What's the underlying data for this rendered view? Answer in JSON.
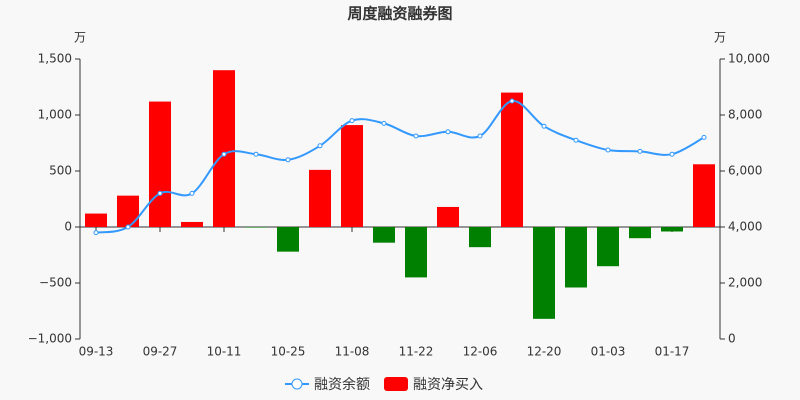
{
  "chart_data": {
    "type": "bar-line",
    "title": "周度融资融券图",
    "y_unit": "万",
    "y2_unit": "万",
    "categories": [
      "09-13",
      null,
      "09-27",
      null,
      "10-11",
      null,
      "10-25",
      null,
      "11-08",
      null,
      "11-22",
      null,
      "12-06",
      null,
      "12-20",
      null,
      "01-03",
      null,
      "01-17",
      null
    ],
    "series": [
      {
        "name": "融资余额",
        "type": "line",
        "axis": "y2",
        "color": "#3399ff",
        "values": [
          3800,
          4000,
          5200,
          5200,
          6600,
          6600,
          6400,
          6900,
          7800,
          7700,
          7250,
          7400,
          7250,
          8500,
          7600,
          7100,
          6750,
          6700,
          6600,
          7200
        ]
      },
      {
        "name": "融资净买入",
        "type": "bar",
        "color": "#ff0000",
        "negative_color": "#008000",
        "values": [
          120,
          280,
          1120,
          45,
          1400,
          -5,
          -220,
          510,
          910,
          -140,
          -450,
          179,
          -180,
          1200,
          -820,
          -540,
          -350,
          -100,
          -40,
          560
        ]
      }
    ],
    "ylim": [
      -1000,
      1500
    ],
    "yticks": [
      {
        "value": -1000,
        "label": "−1,000"
      },
      {
        "value": -500,
        "label": "−500"
      },
      0,
      500,
      {
        "value": 1000,
        "label": "1,000"
      },
      {
        "value": 1500,
        "label": "1,500"
      }
    ],
    "y2lim": [
      0,
      10000
    ],
    "y2ticks": [
      0,
      {
        "value": 2000,
        "label": "2,000"
      },
      {
        "value": 4000,
        "label": "4,000"
      },
      {
        "value": 6000,
        "label": "6,000"
      },
      {
        "value": 8000,
        "label": "8,000"
      },
      {
        "value": 10000,
        "label": "10,000"
      }
    ],
    "grid": false
  }
}
